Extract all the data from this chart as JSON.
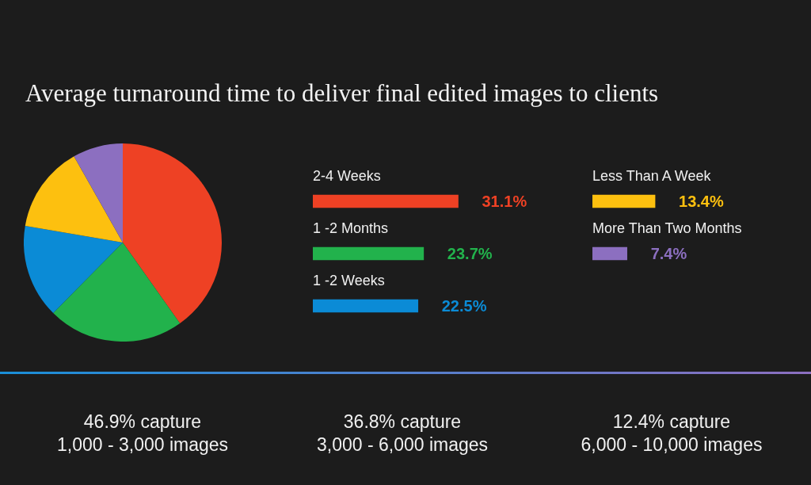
{
  "chart_data": [
    {
      "type": "pie",
      "title": "Average turnaround time to deliver final edited images to clients",
      "categories": [
        null,
        null,
        null,
        null,
        null
      ],
      "values": [
        40.2,
        22.2,
        15.3,
        14.1,
        8.2
      ],
      "colors": [
        "#ee4124",
        "#22b24c",
        "#0b8bd6",
        "#fdc00f",
        "#8c6fc0"
      ]
    },
    {
      "type": "bar",
      "orientation": "horizontal",
      "categories": [
        "2-4 Weeks",
        "1 -2 Months",
        "1 -2 Weeks"
      ],
      "values": [
        31.1,
        23.7,
        22.5
      ],
      "colors": [
        "#ee4124",
        "#22b24c",
        "#0b8bd6"
      ],
      "value_labels": [
        "31.1%",
        "23.7%",
        "22.5%"
      ]
    },
    {
      "type": "bar",
      "orientation": "horizontal",
      "categories": [
        "Less Than A Week",
        "More Than Two Months"
      ],
      "values": [
        13.4,
        7.4
      ],
      "colors": [
        "#fdc00f",
        "#8c6fc0"
      ],
      "value_labels": [
        "13.4%",
        "7.4%"
      ],
      "annotations": [
        "46.9% capture\n1,000 - 3,000 images",
        "36.8% capture\n3,000 - 6,000 images",
        "12.4% capture\n6,000 - 10,000 images"
      ]
    }
  ]
}
